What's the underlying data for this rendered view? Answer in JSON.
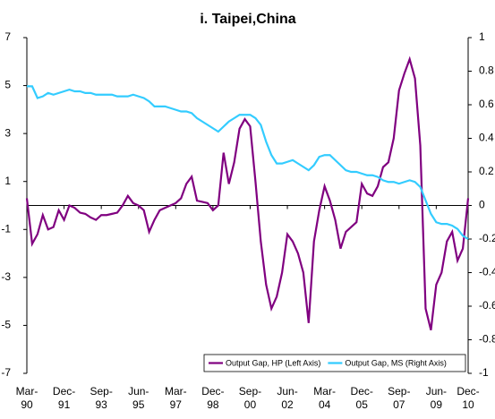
{
  "chart_data": {
    "type": "line",
    "title": "i. Taipei,China",
    "categories": [
      "Mar- 90",
      null,
      null,
      null,
      null,
      null,
      null,
      "Dec- 91",
      null,
      null,
      null,
      null,
      null,
      null,
      "Sep- 93",
      null,
      null,
      null,
      null,
      null,
      null,
      "Jun- 95",
      null,
      null,
      null,
      null,
      null,
      null,
      "Mar- 97",
      null,
      null,
      null,
      null,
      null,
      null,
      "Dec- 98",
      null,
      null,
      null,
      null,
      null,
      null,
      "Sep- 00",
      null,
      null,
      null,
      null,
      null,
      null,
      "Jun- 02",
      null,
      null,
      null,
      null,
      null,
      null,
      "Mar- 04",
      null,
      null,
      null,
      null,
      null,
      null,
      "Dec- 05",
      null,
      null,
      null,
      null,
      null,
      null,
      "Sep- 07",
      null,
      null,
      null,
      null,
      null,
      null,
      "Jun- 09",
      null,
      null,
      null,
      null,
      null,
      "Dec- 10"
    ],
    "series": [
      {
        "name": "Output Gap, HP (Left Axis)",
        "color": "#800080",
        "values": [
          0.3,
          -1.6,
          -1.2,
          -0.4,
          -1.0,
          -0.9,
          -0.2,
          -0.6,
          0.0,
          -0.1,
          -0.3,
          -0.35,
          -0.5,
          -0.6,
          -0.4,
          -0.4,
          -0.35,
          -0.3,
          0.0,
          0.4,
          0.1,
          0.0,
          -0.2,
          -1.1,
          -0.6,
          -0.2,
          -0.1,
          0.0,
          0.1,
          0.3,
          0.9,
          1.2,
          0.2,
          0.15,
          0.1,
          -0.2,
          0.0,
          2.2,
          0.9,
          1.8,
          3.2,
          3.6,
          3.3,
          1.0,
          -1.5,
          -3.3,
          -4.3,
          -3.8,
          -2.8,
          -1.2,
          -1.5,
          -2.0,
          -2.8,
          -4.9,
          -1.5,
          -0.2,
          0.8,
          0.2,
          -0.6,
          -1.8,
          -1.1,
          -0.9,
          -0.7,
          0.9,
          0.5,
          0.4,
          0.8,
          1.6,
          1.8,
          2.8,
          4.8,
          5.5,
          6.1,
          5.3,
          2.5,
          -4.3,
          -5.2,
          -3.3,
          -2.8,
          -1.5,
          -1.1,
          -2.3,
          -1.8,
          0.3
        ]
      },
      {
        "name": "Output Gap, MS (Right Axis)",
        "color": "#33ccff",
        "axis": "y2",
        "values": [
          0.71,
          0.71,
          0.64,
          0.65,
          0.67,
          0.66,
          0.67,
          0.68,
          0.69,
          0.68,
          0.68,
          0.67,
          0.67,
          0.66,
          0.66,
          0.66,
          0.66,
          0.65,
          0.65,
          0.65,
          0.66,
          0.65,
          0.64,
          0.62,
          0.59,
          0.59,
          0.59,
          0.58,
          0.57,
          0.56,
          0.56,
          0.55,
          0.52,
          0.5,
          0.48,
          0.46,
          0.44,
          0.47,
          0.5,
          0.52,
          0.54,
          0.54,
          0.54,
          0.52,
          0.48,
          0.38,
          0.3,
          0.25,
          0.25,
          0.26,
          0.27,
          0.25,
          0.23,
          0.21,
          0.24,
          0.29,
          0.3,
          0.3,
          0.27,
          0.24,
          0.21,
          0.2,
          0.2,
          0.19,
          0.18,
          0.18,
          0.17,
          0.15,
          0.14,
          0.14,
          0.13,
          0.14,
          0.15,
          0.14,
          0.11,
          0.03,
          -0.05,
          -0.1,
          -0.11,
          -0.11,
          -0.12,
          -0.14,
          -0.18,
          -0.2
        ]
      }
    ],
    "ylim": [
      -7,
      7
    ],
    "yticks": [
      7,
      5,
      3,
      1,
      -1,
      -3,
      -5,
      -7
    ],
    "y2lim": [
      -1,
      1
    ],
    "y2ticks": [
      1,
      0.8,
      0.6,
      0.4,
      0.2,
      0,
      -0.2,
      -0.4,
      -0.6,
      -0.8,
      -1
    ],
    "legend": "lower right",
    "grid": false
  }
}
